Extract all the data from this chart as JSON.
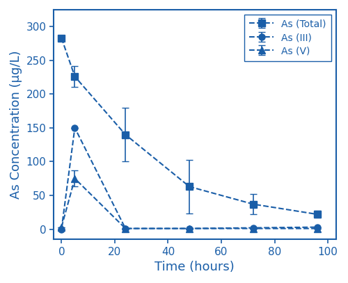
{
  "color": "#1a5276",
  "line_color": "#1a5ea8",
  "time_total": [
    0,
    5,
    24,
    48,
    72,
    96
  ],
  "values_total": [
    283,
    226,
    140,
    63,
    37,
    22
  ],
  "err_total": [
    3,
    15,
    40,
    40,
    15,
    5
  ],
  "time_III": [
    0,
    5,
    24,
    48,
    72,
    96
  ],
  "values_III": [
    0,
    150,
    1,
    1,
    2,
    3
  ],
  "err_III_low": [
    0,
    0,
    0,
    0,
    0,
    0
  ],
  "err_III_high": [
    0,
    0,
    0,
    0,
    0,
    0
  ],
  "time_V": [
    0,
    5,
    24,
    48,
    72,
    96
  ],
  "values_V": [
    3,
    75,
    1,
    1,
    1,
    1
  ],
  "err_V_low": [
    0,
    12,
    0,
    0,
    0,
    0
  ],
  "err_V_high": [
    0,
    12,
    0,
    0,
    0,
    0
  ],
  "xlabel": "Time (hours)",
  "ylabel": "As Concentration (μg/L)",
  "xlim": [
    -3,
    103
  ],
  "ylim": [
    -15,
    325
  ],
  "yticks": [
    0,
    50,
    100,
    150,
    200,
    250,
    300
  ],
  "xticks": [
    0,
    20,
    40,
    60,
    80,
    100
  ],
  "legend_labels": [
    "As (Total)",
    "As (III)",
    "As (V)"
  ],
  "label_fontsize": 13,
  "tick_fontsize": 11,
  "legend_fontsize": 10
}
